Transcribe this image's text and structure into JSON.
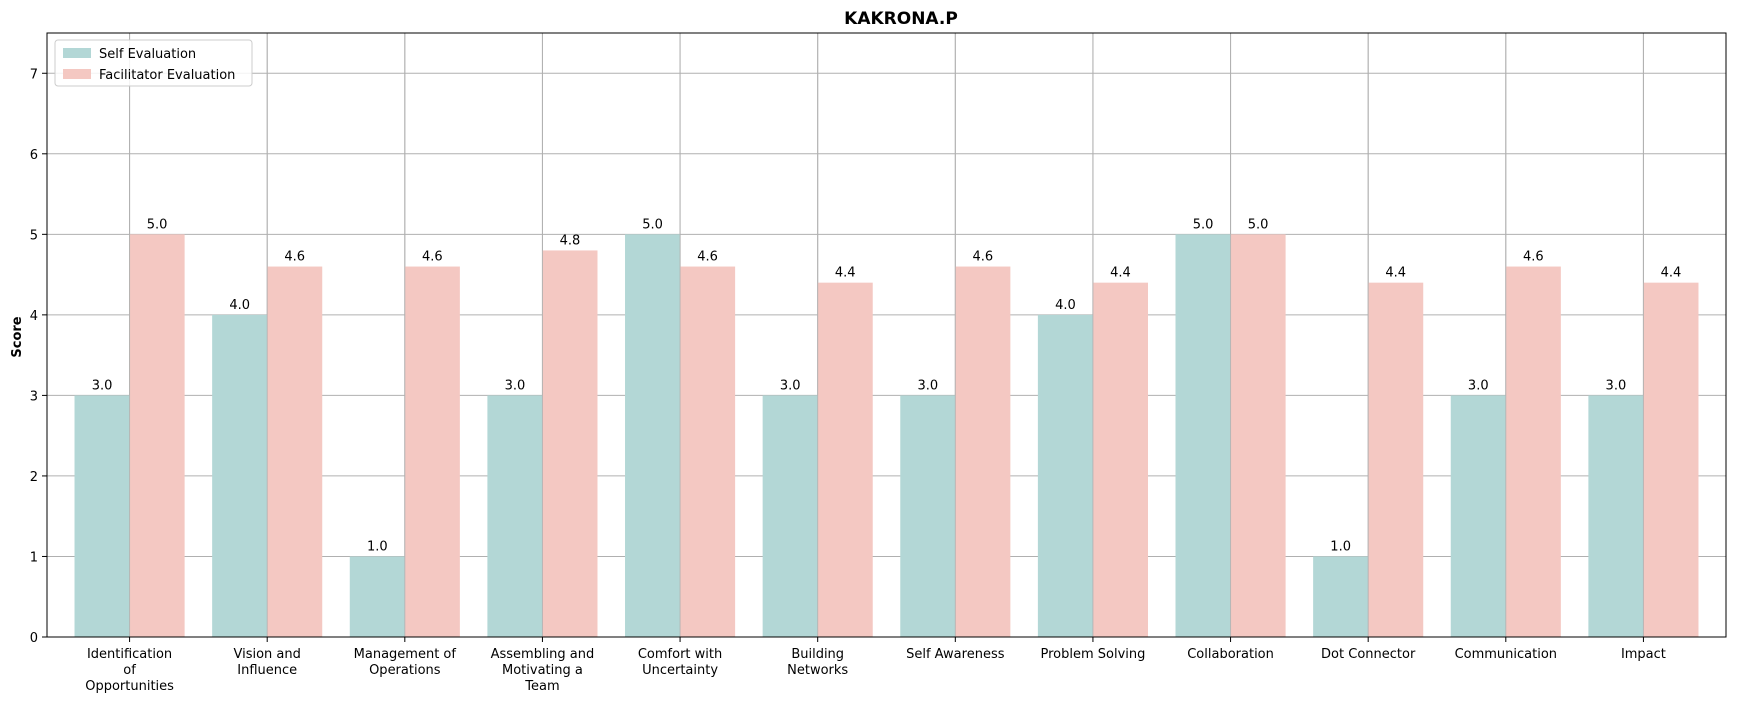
{
  "chart_data": {
    "type": "bar",
    "title": "KAKRONA.P",
    "xlabel": "",
    "ylabel": "Score",
    "ylim": [
      0,
      7.5
    ],
    "yticks": [
      0,
      1,
      2,
      3,
      4,
      5,
      6,
      7
    ],
    "grid": true,
    "legend_position": "top-left",
    "categories": [
      "Identification of Opportunities",
      "Vision and Influence",
      "Management of Operations",
      "Assembling and Motivating a Team",
      "Comfort with Uncertainty",
      "Building Networks",
      "Self Awareness",
      "Problem Solving",
      "Collaboration",
      "Dot Connector",
      "Communication",
      "Impact"
    ],
    "category_lines": [
      [
        "Identification",
        "of",
        "Opportunities"
      ],
      [
        "Vision and",
        "Influence"
      ],
      [
        "Management of",
        "Operations"
      ],
      [
        "Assembling and",
        "Motivating a",
        "Team"
      ],
      [
        "Comfort with",
        "Uncertainty"
      ],
      [
        "Building",
        "Networks"
      ],
      [
        "Self Awareness"
      ],
      [
        "Problem Solving"
      ],
      [
        "Collaboration"
      ],
      [
        "Dot Connector"
      ],
      [
        "Communication"
      ],
      [
        "Impact"
      ]
    ],
    "series": [
      {
        "name": "Self Evaluation",
        "color": "#b3d7d6",
        "values": [
          3.0,
          4.0,
          1.0,
          3.0,
          5.0,
          3.0,
          3.0,
          4.0,
          5.0,
          1.0,
          3.0,
          3.0
        ]
      },
      {
        "name": "Facilitator Evaluation",
        "color": "#f4c8c2",
        "values": [
          5.0,
          4.6,
          4.6,
          4.8,
          4.6,
          4.4,
          4.6,
          4.4,
          5.0,
          4.4,
          4.6,
          4.4
        ]
      }
    ]
  }
}
